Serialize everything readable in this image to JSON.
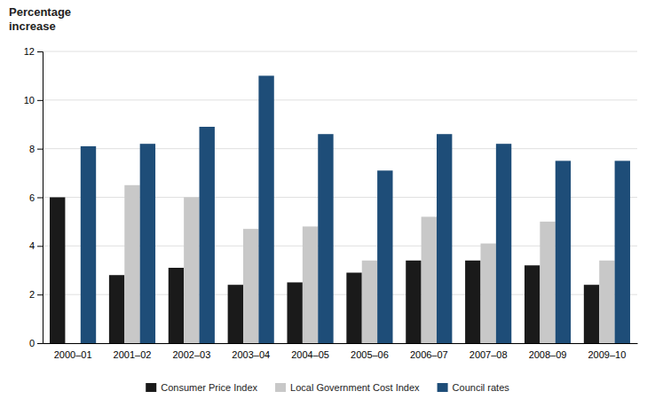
{
  "chart_data": {
    "type": "bar",
    "ylabel": [
      "Percentage",
      "increase"
    ],
    "categories": [
      "2000–01",
      "2001–02",
      "2002–03",
      "2003–04",
      "2004–05",
      "2005–06",
      "2006–07",
      "2007–08",
      "2008–09",
      "2009–10"
    ],
    "series": [
      {
        "name": "Consumer Price Index",
        "color": "#1a1a1a",
        "values": [
          6.0,
          2.8,
          3.1,
          2.4,
          2.5,
          2.9,
          3.4,
          3.4,
          3.2,
          2.4
        ]
      },
      {
        "name": "Local Government Cost Index",
        "color": "#c8c8c8",
        "values": [
          0,
          6.5,
          6.0,
          4.7,
          4.8,
          3.4,
          5.2,
          4.1,
          5.0,
          3.4
        ]
      },
      {
        "name": "Council rates",
        "color": "#1e4d78",
        "values": [
          8.1,
          8.2,
          8.9,
          11.0,
          8.6,
          7.1,
          8.6,
          8.2,
          7.5,
          7.5
        ]
      }
    ],
    "ylim": [
      0,
      12
    ],
    "yticks": [
      0,
      2,
      4,
      6,
      8,
      10,
      12
    ],
    "grid": true,
    "legend": "bottom"
  }
}
